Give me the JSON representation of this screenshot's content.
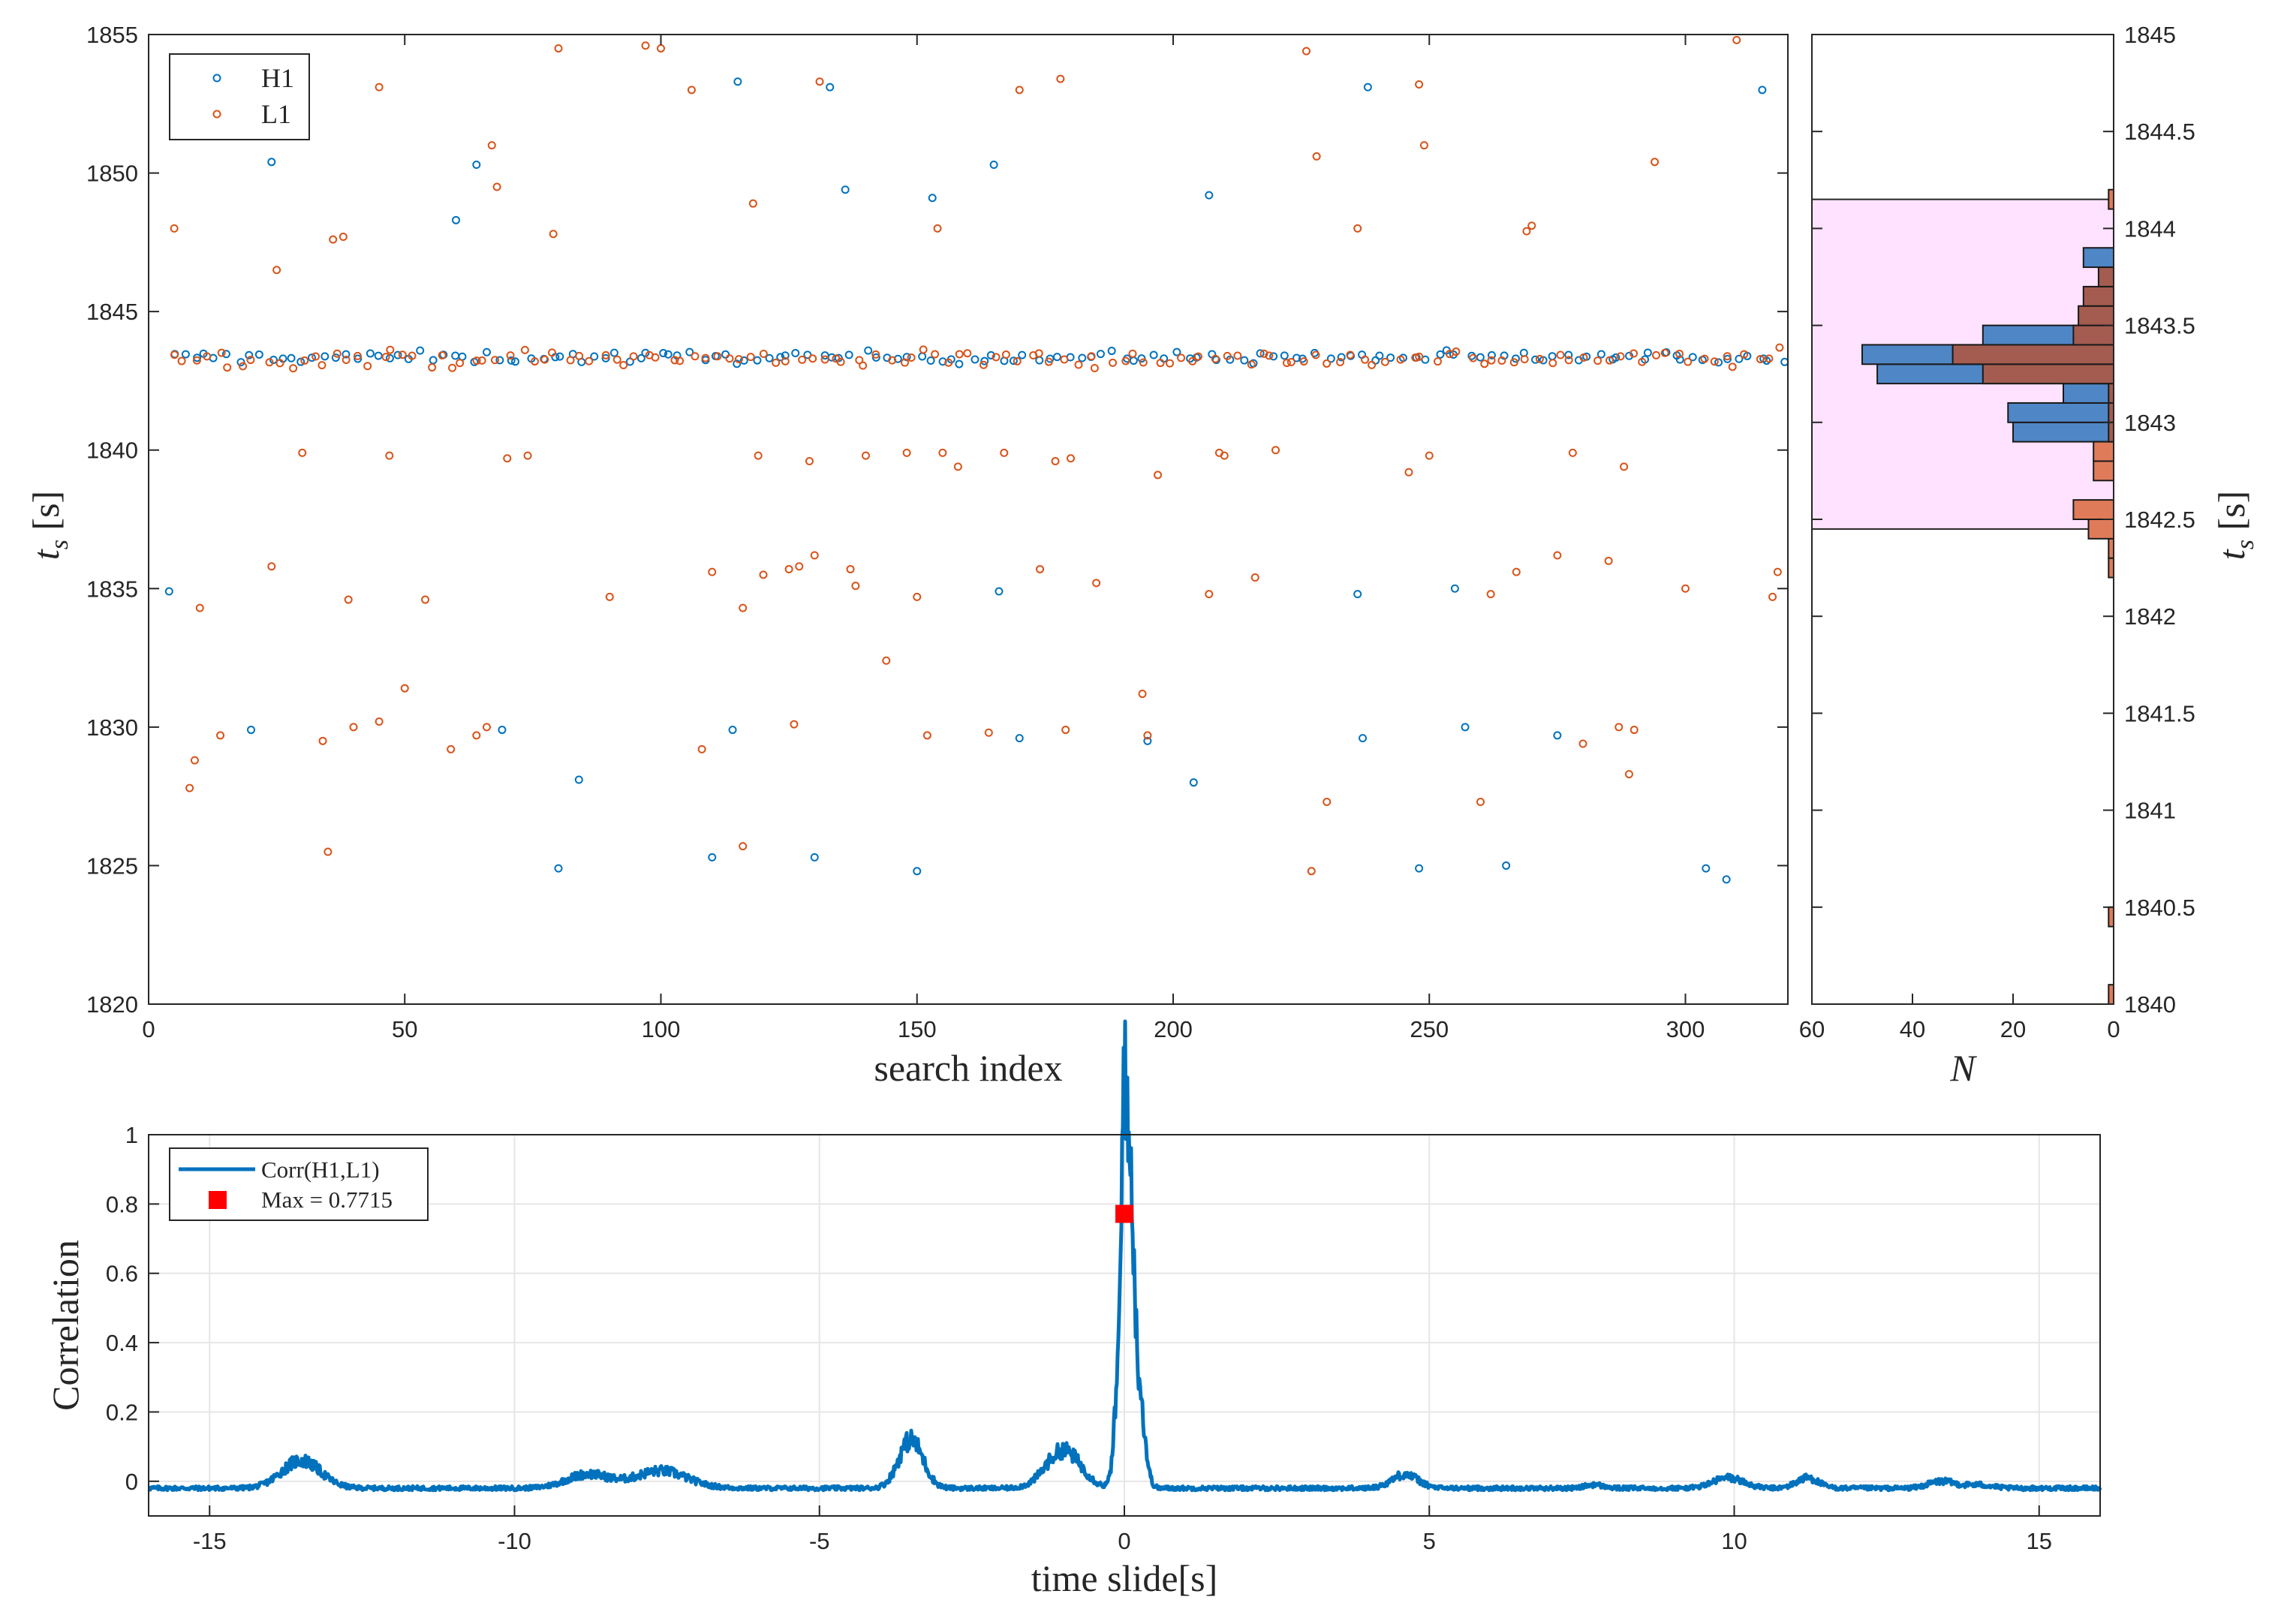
{
  "colors": {
    "h1": "#0072BD",
    "l1": "#D95319",
    "hist_h1_fill": "#4F86C6",
    "hist_l1_fill": "#E07B5A",
    "hist_overlap": "#A35C4F",
    "highlight": "#FFE2FF",
    "corr_line": "#0072BD",
    "max_marker": "#FF0000",
    "grid": "#E6E6E6"
  },
  "chart_data": [
    {
      "type": "scatter",
      "xlabel": "search index",
      "ylabel": "t_s [s]",
      "xlim": [
        0,
        320
      ],
      "ylim": [
        1820,
        1855
      ],
      "xticks": [
        "0",
        "50",
        "100",
        "150",
        "200",
        "250",
        "300"
      ],
      "yticks": [
        "1820",
        "1825",
        "1830",
        "1835",
        "1840",
        "1845",
        "1850",
        "1855"
      ],
      "grid": false,
      "legend_position": "top-left",
      "series": [
        {
          "name": "H1",
          "marker": "circle",
          "color": "#0072BD",
          "cluster": {
            "x_range": [
              4,
              320
            ],
            "count": 150,
            "center": 1843.35,
            "spread": 0.35
          },
          "outliers": [
            [
              4,
              1834.9
            ],
            [
              20,
              1829.9
            ],
            [
              24,
              1850.4
            ],
            [
              60,
              1848.3
            ],
            [
              64,
              1850.3
            ],
            [
              69,
              1829.9
            ],
            [
              84,
              1828.1
            ],
            [
              80,
              1824.9
            ],
            [
              110,
              1825.3
            ],
            [
              114,
              1829.9
            ],
            [
              115,
              1853.3
            ],
            [
              130,
              1825.3
            ],
            [
              133,
              1853.1
            ],
            [
              136,
              1849.4
            ],
            [
              150,
              1824.8
            ],
            [
              153,
              1849.1
            ],
            [
              165,
              1850.3
            ],
            [
              166,
              1834.9
            ],
            [
              170,
              1829.6
            ],
            [
              195,
              1829.5
            ],
            [
              204,
              1828.0
            ],
            [
              207,
              1849.2
            ],
            [
              236,
              1834.8
            ],
            [
              237,
              1829.6
            ],
            [
              238,
              1853.1
            ],
            [
              248,
              1824.9
            ],
            [
              255,
              1835.0
            ],
            [
              257,
              1830.0
            ],
            [
              265,
              1825.0
            ],
            [
              275,
              1829.7
            ],
            [
              304,
              1824.9
            ],
            [
              308,
              1824.5
            ],
            [
              315,
              1853.0
            ]
          ]
        },
        {
          "name": "L1",
          "marker": "circle",
          "color": "#D95319",
          "cluster": {
            "x_range": [
              4,
              320
            ],
            "count": 140,
            "center": 1843.3,
            "spread": 0.5
          },
          "outliers": [
            [
              5,
              1848.0
            ],
            [
              8,
              1827.8
            ],
            [
              9,
              1828.8
            ],
            [
              10,
              1834.3
            ],
            [
              14,
              1829.7
            ],
            [
              24,
              1835.8
            ],
            [
              25,
              1846.5
            ],
            [
              30,
              1839.9
            ],
            [
              34,
              1829.5
            ],
            [
              35,
              1825.5
            ],
            [
              36,
              1847.6
            ],
            [
              38,
              1847.7
            ],
            [
              39,
              1834.6
            ],
            [
              40,
              1830.0
            ],
            [
              45,
              1830.2
            ],
            [
              45,
              1853.1
            ],
            [
              47,
              1839.8
            ],
            [
              50,
              1831.4
            ],
            [
              54,
              1834.6
            ],
            [
              59,
              1829.2
            ],
            [
              64,
              1829.7
            ],
            [
              66,
              1830.0
            ],
            [
              67,
              1851.0
            ],
            [
              68,
              1849.5
            ],
            [
              70,
              1839.7
            ],
            [
              74,
              1839.8
            ],
            [
              79,
              1847.8
            ],
            [
              80,
              1854.5
            ],
            [
              90,
              1834.7
            ],
            [
              97,
              1854.6
            ],
            [
              100,
              1854.5
            ],
            [
              106,
              1853.0
            ],
            [
              108,
              1829.2
            ],
            [
              110,
              1835.6
            ],
            [
              116,
              1834.3
            ],
            [
              116,
              1825.7
            ],
            [
              118,
              1848.9
            ],
            [
              119,
              1839.8
            ],
            [
              120,
              1835.5
            ],
            [
              125,
              1835.7
            ],
            [
              126,
              1830.1
            ],
            [
              127,
              1835.8
            ],
            [
              129,
              1839.6
            ],
            [
              130,
              1836.2
            ],
            [
              131,
              1853.3
            ],
            [
              137,
              1835.7
            ],
            [
              138,
              1835.1
            ],
            [
              140,
              1839.8
            ],
            [
              144,
              1832.4
            ],
            [
              148,
              1839.9
            ],
            [
              150,
              1834.7
            ],
            [
              152,
              1829.7
            ],
            [
              154,
              1848.0
            ],
            [
              155,
              1839.9
            ],
            [
              158,
              1839.4
            ],
            [
              164,
              1829.8
            ],
            [
              167,
              1839.9
            ],
            [
              170,
              1853.0
            ],
            [
              174,
              1835.7
            ],
            [
              177,
              1839.6
            ],
            [
              178,
              1853.4
            ],
            [
              179,
              1829.9
            ],
            [
              180,
              1839.7
            ],
            [
              185,
              1835.2
            ],
            [
              194,
              1831.2
            ],
            [
              195,
              1829.7
            ],
            [
              197,
              1839.1
            ],
            [
              207,
              1834.8
            ],
            [
              209,
              1839.9
            ],
            [
              210,
              1839.8
            ],
            [
              216,
              1835.4
            ],
            [
              220,
              1840.0
            ],
            [
              226,
              1854.4
            ],
            [
              227,
              1824.8
            ],
            [
              228,
              1850.6
            ],
            [
              230,
              1827.3
            ],
            [
              236,
              1848.0
            ],
            [
              246,
              1839.2
            ],
            [
              248,
              1853.2
            ],
            [
              249,
              1851.0
            ],
            [
              250,
              1839.8
            ],
            [
              260,
              1827.3
            ],
            [
              262,
              1834.8
            ],
            [
              267,
              1835.6
            ],
            [
              269,
              1847.9
            ],
            [
              270,
              1848.1
            ],
            [
              275,
              1836.2
            ],
            [
              278,
              1839.9
            ],
            [
              280,
              1829.4
            ],
            [
              285,
              1836.0
            ],
            [
              287,
              1830.0
            ],
            [
              288,
              1839.4
            ],
            [
              289,
              1828.3
            ],
            [
              290,
              1829.9
            ],
            [
              294,
              1850.4
            ],
            [
              300,
              1835.0
            ],
            [
              310,
              1854.8
            ],
            [
              317,
              1834.7
            ],
            [
              318,
              1835.6
            ]
          ]
        }
      ]
    },
    {
      "type": "bar",
      "orientation": "horizontal",
      "xlabel": "N",
      "ylabel": "t_s [s]",
      "xlim": [
        60,
        0
      ],
      "ylim": [
        1840,
        1845
      ],
      "xticks": [
        "60",
        "40",
        "20",
        "0"
      ],
      "yticks": [
        "1840",
        "1840.5",
        "1841",
        "1841.5",
        "1842",
        "1842.5",
        "1843",
        "1843.5",
        "1844",
        "1844.5",
        "1845"
      ],
      "y_axis_position": "right",
      "shaded_band": [
        1842.45,
        1844.15
      ],
      "bin_width": 0.1,
      "series": [
        {
          "name": "H1",
          "color": "#4F86C6",
          "bins": [
            [
              1842.95,
              20
            ],
            [
              1843.05,
              21
            ],
            [
              1843.15,
              10
            ],
            [
              1843.25,
              47
            ],
            [
              1843.35,
              50
            ],
            [
              1843.45,
              26
            ],
            [
              1843.55,
              6
            ],
            [
              1843.65,
              1
            ],
            [
              1843.75,
              2
            ],
            [
              1843.85,
              6
            ]
          ]
        },
        {
          "name": "L1",
          "color": "#E07B5A",
          "bins": [
            [
              1840.05,
              1
            ],
            [
              1840.45,
              1
            ],
            [
              1842.25,
              1
            ],
            [
              1842.35,
              1
            ],
            [
              1842.45,
              5
            ],
            [
              1842.55,
              8
            ],
            [
              1842.75,
              4
            ],
            [
              1842.85,
              4
            ],
            [
              1842.95,
              1
            ],
            [
              1843.05,
              1
            ],
            [
              1843.15,
              1
            ],
            [
              1843.25,
              26
            ],
            [
              1843.35,
              32
            ],
            [
              1843.45,
              8
            ],
            [
              1843.55,
              7
            ],
            [
              1843.65,
              6
            ],
            [
              1843.75,
              3
            ],
            [
              1844.15,
              1
            ]
          ]
        }
      ]
    },
    {
      "type": "line",
      "xlabel": "time slide[s]",
      "ylabel": "Correlation",
      "xlim": [
        -16,
        16
      ],
      "ylim": [
        -0.1,
        1
      ],
      "xticks": [
        "-15",
        "-10",
        "-5",
        "0",
        "5",
        "10",
        "15"
      ],
      "yticks": [
        "0",
        "0.2",
        "0.4",
        "0.6",
        "0.8",
        "1"
      ],
      "grid": true,
      "legend_position": "top-left",
      "series": [
        {
          "name": "Corr(H1,L1)",
          "color": "#0072BD",
          "baseline": -0.02,
          "peaks": [
            [
              -13.5,
              0.08,
              0.45
            ],
            [
              -8.8,
              0.04,
              0.5
            ],
            [
              -7.6,
              0.05,
              0.6
            ],
            [
              -3.5,
              0.14,
              0.28
            ],
            [
              -1.0,
              0.11,
              0.4
            ],
            [
              -0.05,
              0.45,
              0.12
            ],
            [
              0.0,
              0.78,
              0.05
            ],
            [
              0.1,
              0.62,
              0.07
            ],
            [
              0.2,
              0.35,
              0.15
            ],
            [
              4.6,
              0.04,
              0.3
            ],
            [
              7.7,
              0.01,
              0.2
            ],
            [
              9.9,
              0.03,
              0.35
            ],
            [
              11.2,
              0.03,
              0.25
            ],
            [
              13.4,
              0.02,
              0.3
            ],
            [
              14.0,
              0.01,
              0.3
            ]
          ]
        },
        {
          "name": "Max = 0.7715",
          "marker": "square",
          "color": "#FF0000",
          "x": 0,
          "y": 0.7715
        }
      ]
    }
  ],
  "legend": {
    "scatter": [
      "H1",
      "L1"
    ],
    "corr": [
      "Corr(H1,L1)",
      "Max = 0.7715"
    ]
  }
}
